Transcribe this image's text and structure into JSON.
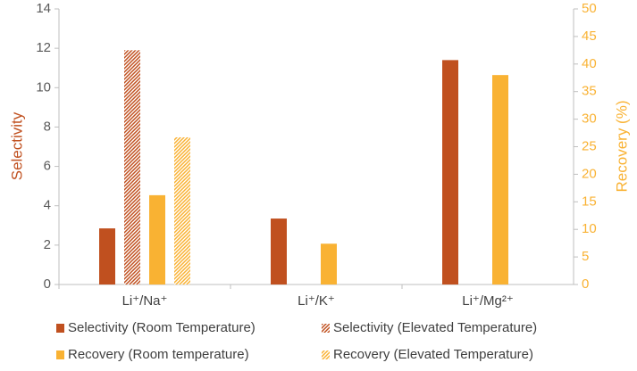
{
  "chart_data": {
    "type": "bar",
    "categories": [
      "Li⁺/Na⁺",
      "Li⁺/K⁺",
      "Li⁺/Mg²⁺"
    ],
    "y_label": "Selectivity",
    "y2_label": "Recovery (%)",
    "ylim": [
      0,
      14
    ],
    "yticks": [
      0,
      2,
      4,
      6,
      8,
      10,
      12,
      14
    ],
    "y2lim": [
      0,
      50
    ],
    "y2ticks": [
      0,
      5,
      10,
      15,
      20,
      25,
      30,
      35,
      40,
      45,
      50
    ],
    "grid": false,
    "legend": "bottom",
    "series": [
      {
        "name": "Selectivity (Room Temperature)",
        "color": "#c0501f",
        "pattern": "solid",
        "values": [
          2.85,
          3.35,
          11.4
        ]
      },
      {
        "name": "Selectivity (Elevated Temperature)",
        "color": "#c0501f",
        "pattern": "hatch",
        "values": [
          11.9,
          null,
          null
        ]
      },
      {
        "name": "Recovery (Room temperature)",
        "color": "#f9b233",
        "pattern": "solid",
        "axis": "y2",
        "values": [
          16.2,
          7.4,
          38.0
        ]
      },
      {
        "name": "Recovery (Elevated Temperature)",
        "color": "#f9b233",
        "pattern": "hatch",
        "axis": "y2",
        "values": [
          26.7,
          null,
          null
        ]
      }
    ]
  }
}
